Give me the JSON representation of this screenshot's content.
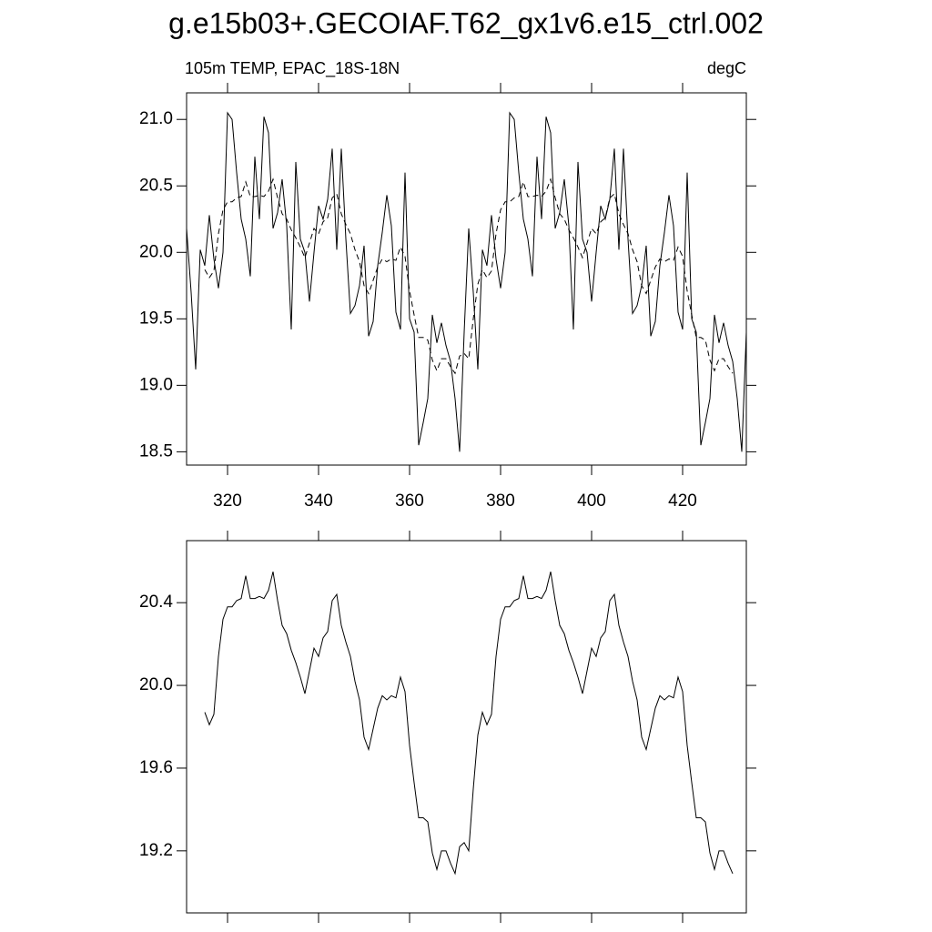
{
  "title": "g.e15b03+.GECOIAF.T62_gx1v6.e15_ctrl.002",
  "chart_data": [
    {
      "type": "line",
      "left_label": "105m TEMP, EPAC_18S-18N",
      "right_label": "degC",
      "xlim": [
        311,
        434
      ],
      "ylim": [
        18.4,
        21.2
      ],
      "xticks": [
        320,
        340,
        360,
        380,
        400,
        420
      ],
      "yticks": [
        {
          "value": 18.5,
          "label": "18.5"
        },
        {
          "value": 19,
          "label": "19.0"
        },
        19.5,
        {
          "value": 20,
          "label": "20.0"
        },
        20.5,
        {
          "value": 21,
          "label": "21.0"
        }
      ],
      "xtick_labels": true,
      "series": [
        {
          "color": "#000000",
          "dashed": false,
          "x": [
            311,
            312,
            313,
            314,
            315,
            316,
            317,
            318,
            319,
            320,
            321,
            322,
            323,
            324,
            325,
            326,
            327,
            328,
            329,
            330,
            331,
            332,
            333,
            334,
            335,
            336,
            337,
            338,
            339,
            340,
            341,
            342,
            343,
            344,
            345,
            346,
            347,
            348,
            349,
            350,
            351,
            352,
            353,
            354,
            355,
            356,
            357,
            358,
            359,
            360,
            361,
            362,
            363,
            364,
            365,
            366,
            367,
            368,
            369,
            370,
            371,
            372,
            373,
            374,
            375,
            376,
            377,
            378,
            379,
            380,
            381,
            382,
            383,
            384,
            385,
            386,
            387,
            388,
            389,
            390,
            391,
            392,
            393,
            394,
            395,
            396,
            397,
            398,
            399,
            400,
            401,
            402,
            403,
            404,
            405,
            406,
            407,
            408,
            409,
            410,
            411,
            412,
            413,
            414,
            415,
            416,
            417,
            418,
            419,
            420,
            421,
            422,
            423,
            424,
            425,
            426,
            427,
            428,
            429,
            430,
            431,
            432,
            433,
            434
          ],
          "values": [
            20.18,
            19.7,
            19.12,
            20.02,
            19.9,
            20.28,
            19.95,
            19.73,
            20.0,
            21.05,
            21.0,
            20.6,
            20.25,
            20.1,
            19.82,
            20.72,
            20.25,
            21.02,
            20.9,
            20.18,
            20.3,
            20.55,
            20.2,
            19.42,
            20.68,
            20.1,
            20.0,
            19.63,
            20.0,
            20.35,
            20.25,
            20.4,
            20.78,
            20.02,
            20.78,
            20.1,
            19.54,
            19.6,
            19.75,
            20.05,
            19.37,
            19.48,
            19.9,
            20.15,
            20.43,
            20.2,
            19.55,
            19.42,
            20.6,
            19.5,
            19.4,
            18.55,
            18.72,
            18.9,
            19.53,
            19.32,
            19.47,
            19.3,
            19.18,
            18.9,
            18.5,
            19.4,
            20.18,
            19.7,
            19.12,
            20.02,
            19.9,
            20.28,
            19.95,
            19.73,
            20.0,
            21.05,
            21.0,
            20.6,
            20.25,
            20.1,
            19.82,
            20.72,
            20.25,
            21.02,
            20.9,
            20.18,
            20.3,
            20.55,
            20.2,
            19.42,
            20.68,
            20.1,
            20.0,
            19.63,
            20.0,
            20.35,
            20.25,
            20.4,
            20.78,
            20.02,
            20.78,
            20.1,
            19.54,
            19.6,
            19.75,
            20.05,
            19.37,
            19.48,
            19.9,
            20.15,
            20.43,
            20.2,
            19.55,
            19.42,
            20.6,
            19.5,
            19.4,
            18.55,
            18.72,
            18.9,
            19.53,
            19.32,
            19.47,
            19.3,
            19.18,
            18.9,
            18.5,
            19.4
          ]
        },
        {
          "color": "#000000",
          "dashed": true,
          "x": [
            315,
            316,
            317,
            318,
            319,
            320,
            321,
            322,
            323,
            324,
            325,
            326,
            327,
            328,
            329,
            330,
            331,
            332,
            333,
            334,
            335,
            336,
            337,
            338,
            339,
            340,
            341,
            342,
            343,
            344,
            345,
            346,
            347,
            348,
            349,
            350,
            351,
            352,
            353,
            354,
            355,
            356,
            357,
            358,
            359,
            360,
            361,
            362,
            363,
            364,
            365,
            366,
            367,
            368,
            369,
            370,
            371,
            372,
            373,
            374,
            375,
            376,
            377,
            378,
            379,
            380,
            381,
            382,
            383,
            384,
            385,
            386,
            387,
            388,
            389,
            390,
            391,
            392,
            393,
            394,
            395,
            396,
            397,
            398,
            399,
            400,
            401,
            402,
            403,
            404,
            405,
            406,
            407,
            408,
            409,
            410,
            411,
            412,
            413,
            414,
            415,
            416,
            417,
            418,
            419,
            420,
            421,
            422,
            423,
            424,
            425,
            426,
            427,
            428,
            429,
            430,
            431
          ],
          "values": [
            19.87,
            19.81,
            19.86,
            20.14,
            20.32,
            20.38,
            20.38,
            20.41,
            20.42,
            20.53,
            20.42,
            20.42,
            20.43,
            20.42,
            20.46,
            20.55,
            20.41,
            20.29,
            20.25,
            20.17,
            20.11,
            20.04,
            19.96,
            20.07,
            20.18,
            20.14,
            20.23,
            20.26,
            20.41,
            20.44,
            20.29,
            20.21,
            20.14,
            20.02,
            19.93,
            19.75,
            19.69,
            19.79,
            19.89,
            19.95,
            19.93,
            19.95,
            19.94,
            20.04,
            19.97,
            19.71,
            19.53,
            19.36,
            19.36,
            19.34,
            19.19,
            19.11,
            19.2,
            19.2,
            19.14,
            19.09,
            19.22,
            19.24,
            19.2,
            19.5,
            19.76,
            19.87,
            19.81,
            19.86,
            20.14,
            20.32,
            20.38,
            20.38,
            20.41,
            20.42,
            20.53,
            20.42,
            20.42,
            20.43,
            20.42,
            20.46,
            20.55,
            20.41,
            20.29,
            20.25,
            20.17,
            20.11,
            20.04,
            19.96,
            20.07,
            20.18,
            20.14,
            20.23,
            20.26,
            20.41,
            20.44,
            20.29,
            20.21,
            20.14,
            20.02,
            19.93,
            19.75,
            19.69,
            19.79,
            19.89,
            19.95,
            19.93,
            19.95,
            19.94,
            20.04,
            19.97,
            19.71,
            19.53,
            19.36,
            19.36,
            19.34,
            19.19,
            19.11,
            19.2,
            19.2,
            19.14,
            19.09
          ]
        }
      ]
    },
    {
      "type": "line",
      "xlim": [
        311,
        434
      ],
      "ylim": [
        18.9,
        20.7
      ],
      "xticks": [
        320,
        340,
        360,
        380,
        400,
        420
      ],
      "yticks": [
        19.2,
        19.6,
        {
          "value": 20,
          "label": "20.0"
        },
        20.4
      ],
      "xtick_labels": false,
      "series": [
        {
          "color": "#000000",
          "dashed": false,
          "x": [
            315,
            316,
            317,
            318,
            319,
            320,
            321,
            322,
            323,
            324,
            325,
            326,
            327,
            328,
            329,
            330,
            331,
            332,
            333,
            334,
            335,
            336,
            337,
            338,
            339,
            340,
            341,
            342,
            343,
            344,
            345,
            346,
            347,
            348,
            349,
            350,
            351,
            352,
            353,
            354,
            355,
            356,
            357,
            358,
            359,
            360,
            361,
            362,
            363,
            364,
            365,
            366,
            367,
            368,
            369,
            370,
            371,
            372,
            373,
            374,
            375,
            376,
            377,
            378,
            379,
            380,
            381,
            382,
            383,
            384,
            385,
            386,
            387,
            388,
            389,
            390,
            391,
            392,
            393,
            394,
            395,
            396,
            397,
            398,
            399,
            400,
            401,
            402,
            403,
            404,
            405,
            406,
            407,
            408,
            409,
            410,
            411,
            412,
            413,
            414,
            415,
            416,
            417,
            418,
            419,
            420,
            421,
            422,
            423,
            424,
            425,
            426,
            427,
            428,
            429,
            430,
            431
          ],
          "values": [
            19.87,
            19.81,
            19.86,
            20.14,
            20.32,
            20.38,
            20.38,
            20.41,
            20.42,
            20.53,
            20.42,
            20.42,
            20.43,
            20.42,
            20.46,
            20.55,
            20.41,
            20.29,
            20.25,
            20.17,
            20.11,
            20.04,
            19.96,
            20.07,
            20.18,
            20.14,
            20.23,
            20.26,
            20.41,
            20.44,
            20.29,
            20.21,
            20.14,
            20.02,
            19.93,
            19.75,
            19.69,
            19.79,
            19.89,
            19.95,
            19.93,
            19.95,
            19.94,
            20.04,
            19.97,
            19.71,
            19.53,
            19.36,
            19.36,
            19.34,
            19.19,
            19.11,
            19.2,
            19.2,
            19.14,
            19.09,
            19.22,
            19.24,
            19.2,
            19.5,
            19.76,
            19.87,
            19.81,
            19.86,
            20.14,
            20.32,
            20.38,
            20.38,
            20.41,
            20.42,
            20.53,
            20.42,
            20.42,
            20.43,
            20.42,
            20.46,
            20.55,
            20.41,
            20.29,
            20.25,
            20.17,
            20.11,
            20.04,
            19.96,
            20.07,
            20.18,
            20.14,
            20.23,
            20.26,
            20.41,
            20.44,
            20.29,
            20.21,
            20.14,
            20.02,
            19.93,
            19.75,
            19.69,
            19.79,
            19.89,
            19.95,
            19.93,
            19.95,
            19.94,
            20.04,
            19.97,
            19.71,
            19.53,
            19.36,
            19.36,
            19.34,
            19.19,
            19.11,
            19.2,
            19.2,
            19.14,
            19.09
          ]
        }
      ]
    }
  ]
}
